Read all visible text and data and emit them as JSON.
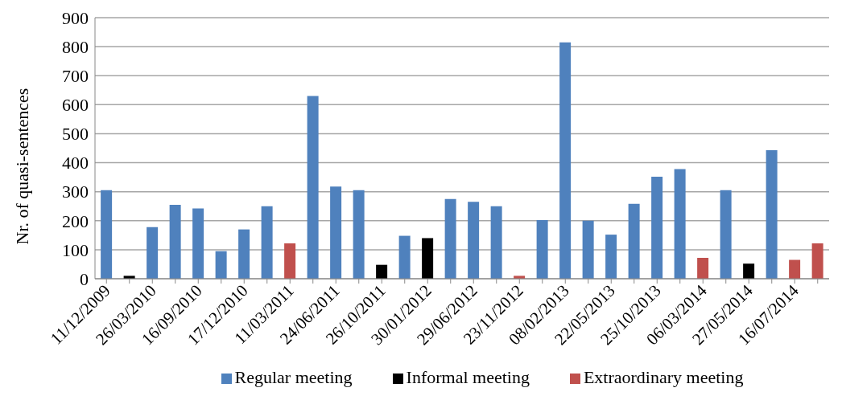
{
  "chart_data": {
    "type": "bar",
    "ylabel": "Nr. of quasi-sentences",
    "categories": [
      "11/12/2009",
      null,
      "26/03/2010",
      null,
      "16/09/2010",
      null,
      "17/12/2010",
      null,
      "11/03/2011",
      null,
      "24/06/2011",
      null,
      "26/10/2011",
      null,
      "30/01/2012",
      null,
      "29/06/2012",
      null,
      "23/11/2012",
      null,
      "08/02/2013",
      null,
      "22/05/2013",
      null,
      "25/10/2013",
      null,
      "06/03/2014",
      null,
      "27/05/2014",
      null,
      "16/07/2014",
      null
    ],
    "series": [
      {
        "name": "Regular meeting",
        "color": "#4f81bd",
        "values": [
          305,
          null,
          178,
          255,
          242,
          95,
          170,
          250,
          null,
          630,
          318,
          305,
          null,
          148,
          null,
          275,
          265,
          250,
          null,
          202,
          815,
          200,
          152,
          258,
          352,
          378,
          null,
          305,
          null,
          443,
          null,
          null
        ]
      },
      {
        "name": "Informal meeting",
        "color": "#000000",
        "values": [
          null,
          10,
          null,
          null,
          null,
          null,
          null,
          null,
          null,
          null,
          null,
          null,
          48,
          null,
          140,
          null,
          null,
          null,
          null,
          null,
          null,
          null,
          null,
          null,
          null,
          null,
          null,
          null,
          52,
          null,
          null,
          null
        ]
      },
      {
        "name": "Extraordinary meeting",
        "color": "#c0504d",
        "values": [
          null,
          null,
          null,
          null,
          null,
          null,
          null,
          null,
          122,
          null,
          null,
          null,
          null,
          null,
          null,
          null,
          null,
          null,
          10,
          null,
          null,
          null,
          null,
          null,
          null,
          null,
          72,
          null,
          null,
          null,
          65,
          122
        ]
      }
    ],
    "stacked": true,
    "ylim": [
      0,
      900
    ],
    "yticks": [
      0,
      100,
      200,
      300,
      400,
      500,
      600,
      700,
      800,
      900
    ],
    "grid": "y",
    "legend": "bottom"
  }
}
